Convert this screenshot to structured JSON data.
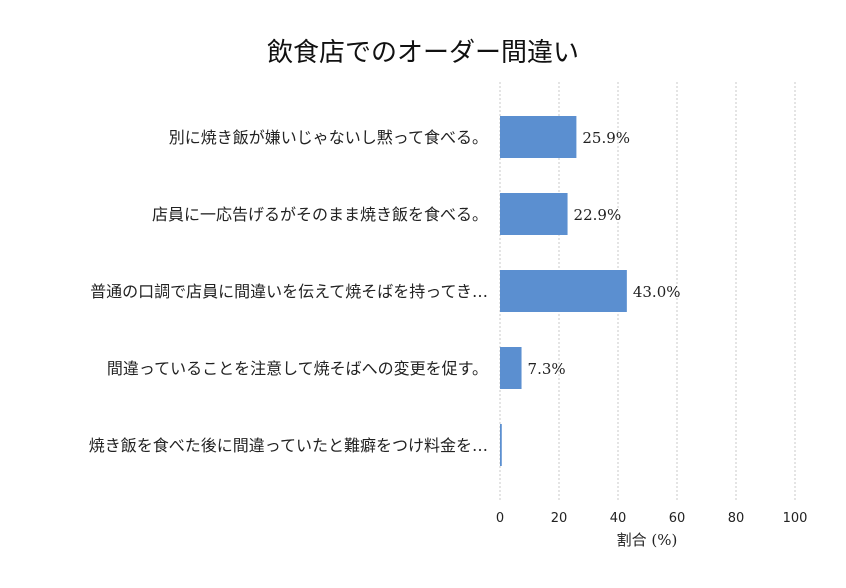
{
  "chart_data": {
    "type": "bar",
    "orientation": "horizontal",
    "title": "飲食店でのオーダー間違い",
    "xlabel": "割合 (%)",
    "ylabel": "",
    "xlim": [
      0,
      100
    ],
    "xticks": [
      "0",
      "20",
      "40",
      "60",
      "80",
      "100"
    ],
    "grid": true,
    "bar_color": "#5b8fd0",
    "categories": [
      "別に焼き飯が嫌いじゃないし黙って食べる。",
      "店員に一応告げるがそのまま焼き飯を食べる。",
      "普通の口調で店員に間違いを伝えて焼そばを持ってき…",
      "間違っていることを注意して焼そばへの変更を促す。",
      "焼き飯を食べた後に間違っていたと難癖をつけ料金を…"
    ],
    "values": [
      25.9,
      22.9,
      43.0,
      7.3,
      0.6
    ],
    "value_labels": [
      "25.9%",
      "22.9%",
      "43.0%",
      "7.3%",
      ""
    ]
  }
}
